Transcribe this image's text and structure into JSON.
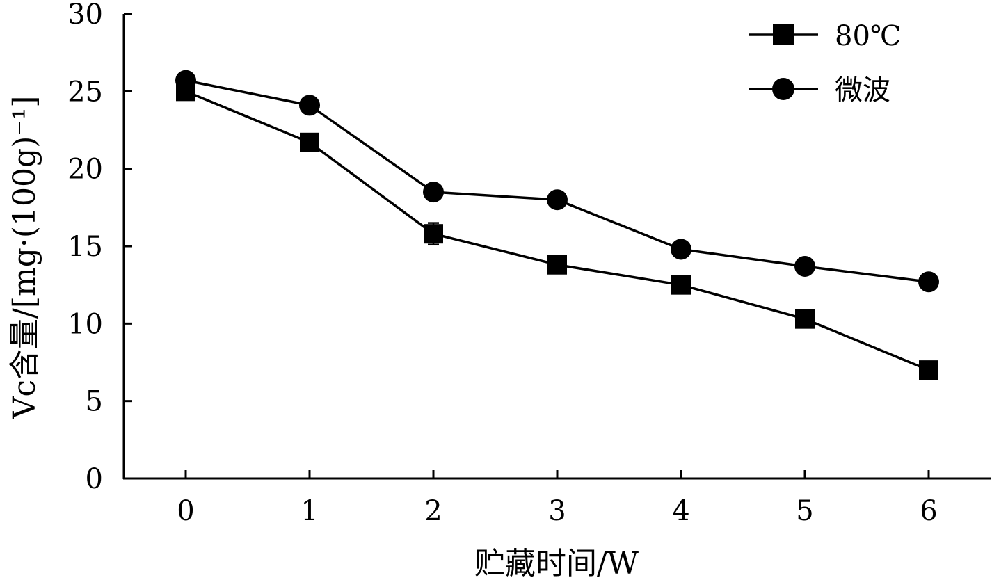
{
  "chart_data": {
    "type": "line",
    "xlabel": "贮藏时间/W",
    "ylabel": "Vc含量/[mg·(100g)⁻¹]",
    "x": [
      0,
      1,
      2,
      3,
      4,
      5,
      6
    ],
    "xticks": [
      "0",
      "1",
      "2",
      "3",
      "4",
      "5",
      "6"
    ],
    "yticks": [
      "0",
      "5",
      "10",
      "15",
      "20",
      "25",
      "30"
    ],
    "xlim": [
      -0.5,
      6.5
    ],
    "ylim": [
      0,
      30
    ],
    "grid": false,
    "legend_position": "top-right",
    "series": [
      {
        "name": "80℃",
        "marker": "square",
        "color": "#000000",
        "values": [
          25.0,
          21.7,
          15.8,
          13.8,
          12.5,
          10.3,
          7.0
        ],
        "errors": [
          0.3,
          0.4,
          0.7,
          0.3,
          0.3,
          0.3,
          0.3
        ]
      },
      {
        "name": "微波",
        "marker": "circle",
        "color": "#000000",
        "values": [
          25.7,
          24.1,
          18.5,
          18.0,
          14.8,
          13.7,
          12.7
        ],
        "errors": [
          0.3,
          0.3,
          0.3,
          0.3,
          0.3,
          0.3,
          0.3
        ]
      }
    ]
  }
}
